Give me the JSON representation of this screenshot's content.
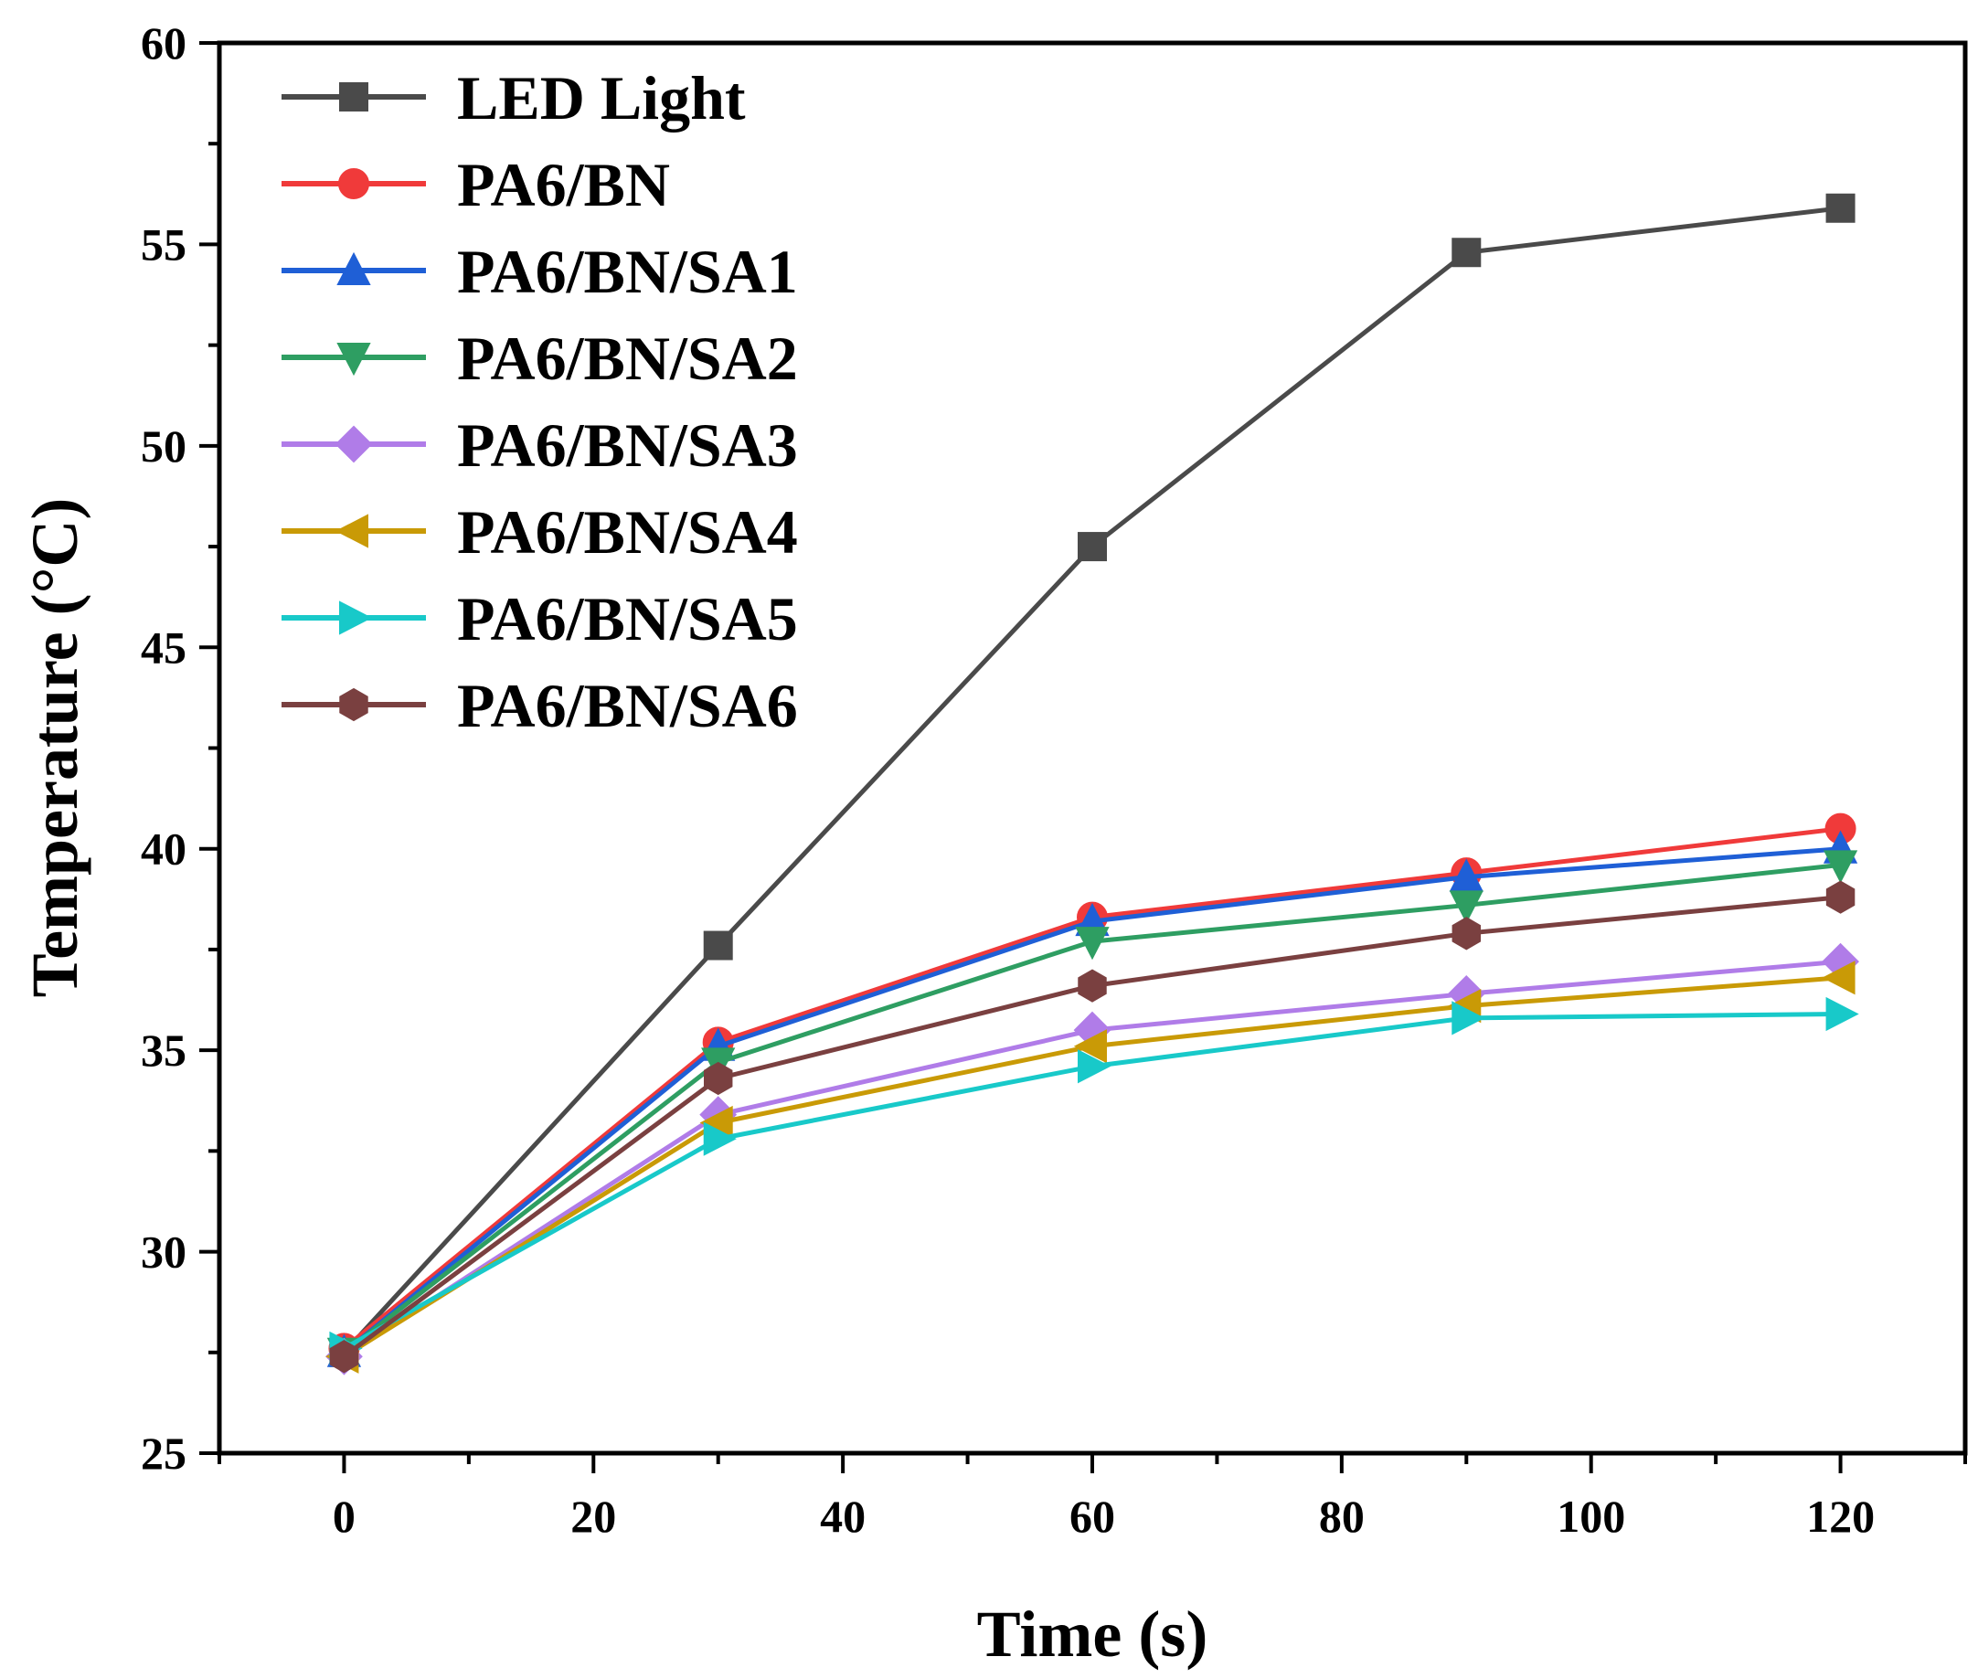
{
  "chart_data": {
    "type": "line",
    "title": "",
    "xlabel": "Time (s)",
    "ylabel": "Temperature (°C)",
    "xlim": [
      -10,
      130
    ],
    "ylim": [
      25,
      60
    ],
    "xticks": [
      0,
      20,
      40,
      60,
      80,
      100,
      120
    ],
    "yticks": [
      25,
      30,
      35,
      40,
      45,
      50,
      55,
      60
    ],
    "x": [
      0,
      30,
      60,
      90,
      120
    ],
    "legend_position": "top-left",
    "series": [
      {
        "name": "LED Light",
        "marker": "square",
        "color": "#4a4a4a",
        "values": [
          27.5,
          37.6,
          47.5,
          54.8,
          55.9
        ]
      },
      {
        "name": "PA6/BN",
        "marker": "circle",
        "color": "#f03a3a",
        "values": [
          27.6,
          35.2,
          38.3,
          39.4,
          40.5
        ]
      },
      {
        "name": "PA6/BN/SA1",
        "marker": "triangle-up",
        "color": "#1f5fd6",
        "values": [
          27.5,
          35.1,
          38.2,
          39.3,
          40.0
        ]
      },
      {
        "name": "PA6/BN/SA2",
        "marker": "triangle-down",
        "color": "#2e9e62",
        "values": [
          27.5,
          34.7,
          37.7,
          38.6,
          39.6
        ]
      },
      {
        "name": "PA6/BN/SA3",
        "marker": "diamond",
        "color": "#b07ce8",
        "values": [
          27.4,
          33.4,
          35.5,
          36.4,
          37.2
        ]
      },
      {
        "name": "PA6/BN/SA4",
        "marker": "triangle-left",
        "color": "#c99a06",
        "values": [
          27.4,
          33.2,
          35.1,
          36.1,
          36.8
        ]
      },
      {
        "name": "PA6/BN/SA5",
        "marker": "triangle-right",
        "color": "#18c9c9",
        "values": [
          27.6,
          32.8,
          34.6,
          35.8,
          35.9
        ]
      },
      {
        "name": "PA6/BN/SA6",
        "marker": "hexagon",
        "color": "#7a4040",
        "values": [
          27.4,
          34.3,
          36.6,
          37.9,
          38.8
        ]
      }
    ]
  }
}
